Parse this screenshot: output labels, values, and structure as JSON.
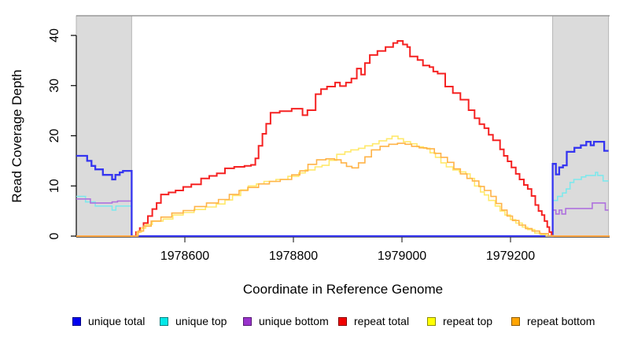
{
  "figure": {
    "ylabel": "Read Coverage Depth",
    "xlabel": "Coordinate in Reference Genome"
  },
  "chart_data": {
    "type": "line",
    "subtype": "step-coverage-depth",
    "title": "",
    "xlabel": "Coordinate in Reference Genome",
    "ylabel": "Read Coverage Depth",
    "xlim": [
      1978400,
      1979383
    ],
    "ylim": [
      0,
      44
    ],
    "x_ticks": [
      1978600,
      1978800,
      1979000,
      1979200
    ],
    "y_ticks": [
      0,
      10,
      20,
      30,
      40
    ],
    "grid": false,
    "legend_position": "bottom",
    "plot_bg": "#ffffff",
    "shaded_region_fill": "#DBDBDB",
    "shaded_region_border": "#B5B5B5",
    "top_border_color": "#999999",
    "axis_color": "#000000",
    "shaded_regions": [
      {
        "x0": 1978400,
        "x1": 1978502
      },
      {
        "x0": 1979278,
        "x1": 1979381
      }
    ],
    "series": [
      {
        "id": "unique-total",
        "label": "unique total",
        "color": "#0000F0",
        "line_color": "#3535F0",
        "points": [
          [
            1978400,
            16
          ],
          [
            1978420,
            15
          ],
          [
            1978428,
            14
          ],
          [
            1978435,
            13.3
          ],
          [
            1978449,
            12.2
          ],
          [
            1978466,
            11.3
          ],
          [
            1978472,
            12.2
          ],
          [
            1978480,
            12.7
          ],
          [
            1978486,
            13
          ],
          [
            1978502,
            13
          ],
          [
            1978502,
            0
          ],
          [
            1979278,
            0
          ],
          [
            1979278,
            14.4
          ],
          [
            1979284,
            12.3
          ],
          [
            1979290,
            13.7
          ],
          [
            1979297,
            14.1
          ],
          [
            1979304,
            16.8
          ],
          [
            1979318,
            17.6
          ],
          [
            1979330,
            18.1
          ],
          [
            1979340,
            18.8
          ],
          [
            1979348,
            18.1
          ],
          [
            1979354,
            18.8
          ],
          [
            1979370,
            18.8
          ],
          [
            1979373,
            17
          ],
          [
            1979381,
            17
          ]
        ]
      },
      {
        "id": "unique-top",
        "label": "unique top",
        "color": "#00E8E8",
        "line_color": "#7FE8EC",
        "points": [
          [
            1978400,
            7.9
          ],
          [
            1978417,
            6.8
          ],
          [
            1978435,
            6
          ],
          [
            1978466,
            5.2
          ],
          [
            1978473,
            6
          ],
          [
            1978502,
            6
          ],
          [
            1978502,
            0
          ],
          [
            1979278,
            0
          ],
          [
            1979278,
            7.1
          ],
          [
            1979287,
            7.9
          ],
          [
            1979296,
            8.6
          ],
          [
            1979303,
            9.4
          ],
          [
            1979310,
            10.7
          ],
          [
            1979317,
            11.3
          ],
          [
            1979331,
            11.8
          ],
          [
            1979339,
            12.1
          ],
          [
            1979354,
            12.1
          ],
          [
            1979357,
            12.7
          ],
          [
            1979361,
            12.1
          ],
          [
            1979371,
            11
          ],
          [
            1979381,
            11
          ]
        ]
      },
      {
        "id": "unique-bottom",
        "label": "unique bottom",
        "color": "#9932CC",
        "line_color": "#AF72DE",
        "points": [
          [
            1978400,
            7.4
          ],
          [
            1978426,
            6.6
          ],
          [
            1978466,
            6.8
          ],
          [
            1978476,
            7
          ],
          [
            1978502,
            7
          ],
          [
            1978502,
            0
          ],
          [
            1979278,
            0
          ],
          [
            1979278,
            5.2
          ],
          [
            1979284,
            4.4
          ],
          [
            1979290,
            5.2
          ],
          [
            1979295,
            4.4
          ],
          [
            1979302,
            5.5
          ],
          [
            1979347,
            5.5
          ],
          [
            1979351,
            6.6
          ],
          [
            1979372,
            6.6
          ],
          [
            1979375,
            5.2
          ],
          [
            1979381,
            5.2
          ]
        ]
      },
      {
        "id": "repeat-total",
        "label": "repeat total",
        "color": "#F00000",
        "line_color": "#F52222",
        "points": [
          [
            1978400,
            0
          ],
          [
            1978504,
            0
          ],
          [
            1978510,
            0.8
          ],
          [
            1978517,
            1.6
          ],
          [
            1978524,
            2.6
          ],
          [
            1978532,
            4
          ],
          [
            1978540,
            5.4
          ],
          [
            1978548,
            6.6
          ],
          [
            1978556,
            8.3
          ],
          [
            1978570,
            8.7
          ],
          [
            1978583,
            9.1
          ],
          [
            1978597,
            9.8
          ],
          [
            1978612,
            10.3
          ],
          [
            1978630,
            11.5
          ],
          [
            1978645,
            12
          ],
          [
            1978659,
            12.5
          ],
          [
            1978674,
            13.5
          ],
          [
            1978691,
            13.8
          ],
          [
            1978710,
            14
          ],
          [
            1978722,
            14.2
          ],
          [
            1978730,
            15.5
          ],
          [
            1978736,
            18
          ],
          [
            1978743,
            20.4
          ],
          [
            1978750,
            22.4
          ],
          [
            1978758,
            24.6
          ],
          [
            1978775,
            24.9
          ],
          [
            1978797,
            25.4
          ],
          [
            1978817,
            24.1
          ],
          [
            1978826,
            25.1
          ],
          [
            1978841,
            28.3
          ],
          [
            1978851,
            29.3
          ],
          [
            1978862,
            29.8
          ],
          [
            1978877,
            30.6
          ],
          [
            1978886,
            29.9
          ],
          [
            1978897,
            30.6
          ],
          [
            1978907,
            31.4
          ],
          [
            1978917,
            33.4
          ],
          [
            1978925,
            32.2
          ],
          [
            1978932,
            34.5
          ],
          [
            1978941,
            36.1
          ],
          [
            1978955,
            36.9
          ],
          [
            1978970,
            37.7
          ],
          [
            1978984,
            38.5
          ],
          [
            1978992,
            38.9
          ],
          [
            1979002,
            38.2
          ],
          [
            1979010,
            37.7
          ],
          [
            1979015,
            35.8
          ],
          [
            1979029,
            35.1
          ],
          [
            1979039,
            34
          ],
          [
            1979051,
            33.7
          ],
          [
            1979058,
            32.8
          ],
          [
            1979066,
            32.4
          ],
          [
            1979080,
            29.8
          ],
          [
            1979094,
            28.5
          ],
          [
            1979108,
            27.2
          ],
          [
            1979123,
            25.1
          ],
          [
            1979134,
            23.5
          ],
          [
            1979143,
            22.3
          ],
          [
            1979152,
            21.5
          ],
          [
            1979160,
            20.2
          ],
          [
            1979168,
            19.1
          ],
          [
            1979181,
            17.3
          ],
          [
            1979188,
            16
          ],
          [
            1979195,
            14.9
          ],
          [
            1979202,
            13.7
          ],
          [
            1979210,
            12.4
          ],
          [
            1979217,
            11.3
          ],
          [
            1979225,
            10.2
          ],
          [
            1979232,
            9.4
          ],
          [
            1979239,
            8
          ],
          [
            1979246,
            6.2
          ],
          [
            1979252,
            5
          ],
          [
            1979258,
            4.2
          ],
          [
            1979263,
            3
          ],
          [
            1979268,
            1.8
          ],
          [
            1979272,
            0.8
          ],
          [
            1979276,
            0
          ],
          [
            1979383,
            0
          ]
        ]
      },
      {
        "id": "repeat-top",
        "label": "repeat top",
        "color": "#FFFF00",
        "line_color": "#FFE96B",
        "points": [
          [
            1978400,
            0
          ],
          [
            1978504,
            0
          ],
          [
            1978512,
            0.8
          ],
          [
            1978520,
            1.6
          ],
          [
            1978528,
            2.3
          ],
          [
            1978540,
            3
          ],
          [
            1978560,
            3.4
          ],
          [
            1978578,
            4.2
          ],
          [
            1978597,
            4.7
          ],
          [
            1978617,
            5.3
          ],
          [
            1978638,
            5.8
          ],
          [
            1978658,
            6.4
          ],
          [
            1978674,
            7.2
          ],
          [
            1978688,
            8.1
          ],
          [
            1978703,
            9.2
          ],
          [
            1978717,
            10
          ],
          [
            1978732,
            10.4
          ],
          [
            1978746,
            10.9
          ],
          [
            1978768,
            11.3
          ],
          [
            1978790,
            11.9
          ],
          [
            1978810,
            12.6
          ],
          [
            1978822,
            13.2
          ],
          [
            1978840,
            13.8
          ],
          [
            1978853,
            14.1
          ],
          [
            1978866,
            15.1
          ],
          [
            1978880,
            16.3
          ],
          [
            1978895,
            16.8
          ],
          [
            1978906,
            17.2
          ],
          [
            1978920,
            17.5
          ],
          [
            1978932,
            18
          ],
          [
            1978946,
            18.4
          ],
          [
            1978958,
            19
          ],
          [
            1978972,
            19.4
          ],
          [
            1978982,
            19.9
          ],
          [
            1978993,
            19.4
          ],
          [
            1979003,
            18.8
          ],
          [
            1979016,
            18.4
          ],
          [
            1979028,
            17.8
          ],
          [
            1979040,
            17.5
          ],
          [
            1979052,
            16.6
          ],
          [
            1979062,
            15.7
          ],
          [
            1979072,
            14.6
          ],
          [
            1979082,
            13.8
          ],
          [
            1979094,
            13.2
          ],
          [
            1979106,
            12.8
          ],
          [
            1979118,
            12.4
          ],
          [
            1979126,
            11.5
          ],
          [
            1979134,
            10
          ],
          [
            1979145,
            8.8
          ],
          [
            1979152,
            8.2
          ],
          [
            1979160,
            7.1
          ],
          [
            1979172,
            6
          ],
          [
            1979181,
            5
          ],
          [
            1979190,
            4.2
          ],
          [
            1979200,
            3.3
          ],
          [
            1979210,
            2.6
          ],
          [
            1979222,
            1.8
          ],
          [
            1979232,
            1.3
          ],
          [
            1979245,
            0.6
          ],
          [
            1979256,
            0.3
          ],
          [
            1979266,
            0
          ],
          [
            1979383,
            0
          ]
        ]
      },
      {
        "id": "repeat-bottom",
        "label": "repeat bottom",
        "color": "#FFA500",
        "line_color": "#FFB347",
        "points": [
          [
            1978400,
            0
          ],
          [
            1978504,
            0
          ],
          [
            1978514,
            1
          ],
          [
            1978524,
            2
          ],
          [
            1978538,
            3
          ],
          [
            1978556,
            3.8
          ],
          [
            1978576,
            4.6
          ],
          [
            1978597,
            5.1
          ],
          [
            1978618,
            5.9
          ],
          [
            1978640,
            6.6
          ],
          [
            1978662,
            7.3
          ],
          [
            1978682,
            8.3
          ],
          [
            1978700,
            9.1
          ],
          [
            1978716,
            9.7
          ],
          [
            1978736,
            10.4
          ],
          [
            1978756,
            10.9
          ],
          [
            1978776,
            11.3
          ],
          [
            1978797,
            12.2
          ],
          [
            1978812,
            13
          ],
          [
            1978827,
            14.3
          ],
          [
            1978843,
            15.2
          ],
          [
            1978860,
            15.4
          ],
          [
            1978876,
            15.2
          ],
          [
            1978888,
            14.6
          ],
          [
            1978898,
            13.9
          ],
          [
            1978908,
            13.6
          ],
          [
            1978920,
            14.6
          ],
          [
            1978932,
            15.8
          ],
          [
            1978944,
            17.2
          ],
          [
            1978960,
            17.9
          ],
          [
            1978976,
            18.3
          ],
          [
            1978992,
            18.5
          ],
          [
            1979006,
            18.3
          ],
          [
            1979018,
            17.9
          ],
          [
            1979032,
            17.6
          ],
          [
            1979046,
            17.4
          ],
          [
            1979060,
            16.5
          ],
          [
            1979072,
            15.7
          ],
          [
            1979084,
            14.7
          ],
          [
            1979096,
            13.4
          ],
          [
            1979108,
            12.4
          ],
          [
            1979120,
            11.5
          ],
          [
            1979130,
            11
          ],
          [
            1979142,
            9.9
          ],
          [
            1979152,
            9.1
          ],
          [
            1979164,
            7.9
          ],
          [
            1979174,
            6.5
          ],
          [
            1979184,
            5.2
          ],
          [
            1979194,
            4
          ],
          [
            1979204,
            3.1
          ],
          [
            1979216,
            2.2
          ],
          [
            1979228,
            1.5
          ],
          [
            1979240,
            1
          ],
          [
            1979254,
            0.5
          ],
          [
            1979270,
            0.1
          ],
          [
            1979280,
            0
          ],
          [
            1979383,
            0
          ]
        ]
      }
    ]
  }
}
